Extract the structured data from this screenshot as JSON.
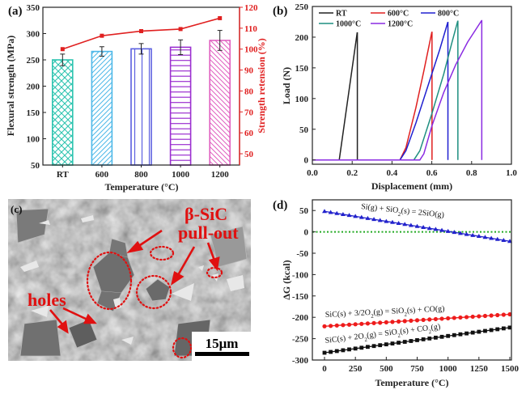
{
  "chart_data": [
    {
      "panel": "(a)",
      "type": "bar",
      "xlabel": "Temperature (°C)",
      "ylabel": "Flexural strength (MPa)",
      "y2label": "Strength retension (%)",
      "categories": [
        "RT",
        "600",
        "800",
        "1000",
        "1200"
      ],
      "ylim": [
        50,
        350
      ],
      "yticks": [
        50,
        100,
        150,
        200,
        250,
        300,
        350
      ],
      "y2lim": [
        44.6,
        120
      ],
      "y2ticks": [
        50,
        60,
        70,
        80,
        90,
        100,
        110,
        120
      ],
      "series": [
        {
          "name": "Flexural strength",
          "type": "bar",
          "values": [
            250,
            266,
            271,
            274,
            287
          ],
          "errors": [
            11,
            9,
            10,
            14,
            19
          ],
          "colors": [
            "#2ec4b0",
            "#4db8e8",
            "#5b5fe0",
            "#9b2fd0",
            "#e060c0"
          ],
          "patterns": [
            "crosshatch",
            "diagonal",
            "vertical",
            "horizontal",
            "backdiagonal"
          ]
        },
        {
          "name": "Strength retension",
          "type": "line",
          "axis": "right",
          "values": [
            100,
            106.4,
            108.6,
            109.6,
            114.8
          ],
          "color": "#e02020"
        }
      ]
    },
    {
      "panel": "(b)",
      "type": "line",
      "xlabel": "Displacement (mm)",
      "ylabel": "Load (N)",
      "xlim": [
        0.0,
        1.0
      ],
      "ylim": [
        -7,
        250
      ],
      "xticks": [
        "0.0",
        "0.2",
        "0.4",
        "0.6",
        "0.8",
        "1.0"
      ],
      "yticks": [
        0,
        50,
        100,
        150,
        200,
        250
      ],
      "legend_position": "top",
      "series": [
        {
          "name": "RT",
          "color": "#222222",
          "x": [
            0.0,
            0.135,
            0.225,
            0.226,
            0.226
          ],
          "y": [
            0,
            0,
            207,
            207,
            0
          ]
        },
        {
          "name": "600°C",
          "color": "#e02020",
          "x": [
            0.0,
            0.44,
            0.47,
            0.52,
            0.56,
            0.6,
            0.601,
            0.601
          ],
          "y": [
            0,
            0,
            20,
            85,
            145,
            208,
            208,
            0
          ]
        },
        {
          "name": "800°C",
          "color": "#2020d0",
          "x": [
            0.0,
            0.44,
            0.47,
            0.52,
            0.58,
            0.64,
            0.68,
            0.681,
            0.681
          ],
          "y": [
            0,
            0,
            15,
            60,
            120,
            180,
            224,
            224,
            0
          ]
        },
        {
          "name": "1000°C",
          "color": "#1f8f80",
          "x": [
            0.0,
            0.51,
            0.54,
            0.6,
            0.66,
            0.7,
            0.73,
            0.731,
            0.731
          ],
          "y": [
            0,
            0,
            15,
            75,
            140,
            190,
            226,
            226,
            0
          ]
        },
        {
          "name": "1200°C",
          "color": "#8a2be2",
          "x": [
            0.0,
            0.54,
            0.56,
            0.6,
            0.66,
            0.72,
            0.78,
            0.85,
            0.851,
            0.851
          ],
          "y": [
            0,
            0,
            10,
            55,
            110,
            155,
            192,
            227,
            227,
            0
          ]
        }
      ]
    },
    {
      "panel": "(d)",
      "type": "scatter",
      "xlabel": "Temperature (°C)",
      "ylabel": "ΔG (kcal)",
      "xlim": [
        -60,
        1500
      ],
      "ylim": [
        -300,
        75
      ],
      "xticks": [
        0,
        250,
        500,
        750,
        1000,
        1250,
        1500
      ],
      "yticks": [
        50,
        0,
        -50,
        -100,
        -150,
        -200,
        -250,
        -300
      ],
      "reference_line": {
        "y": 0,
        "color": "#22aa22",
        "style": "dotted"
      },
      "series": [
        {
          "name": "Si(g) + SiO2(s) = 2SiO(g)",
          "marker": "triangle",
          "color": "#2222cc",
          "x_start": 0,
          "x_end": 1500,
          "x_step": 50,
          "y_start": 48,
          "y_end": -22
        },
        {
          "name": "SiC(s) + 3/2O2(g) = SiO2(s) + CO(g)",
          "marker": "circle",
          "color": "#ee1c1c",
          "x_start": 0,
          "x_end": 1500,
          "x_step": 50,
          "y_start": -221,
          "y_end": -193
        },
        {
          "name": "SiC(s) + 2O2(g) = SiO2(s) + CO2(g)",
          "marker": "square",
          "color": "#111111",
          "x_start": 0,
          "x_end": 1500,
          "x_step": 50,
          "y_start": -283,
          "y_end": -224
        }
      ]
    }
  ],
  "micrograph": {
    "panel": "(c)",
    "labels": {
      "beta_sic": "β-SiC",
      "pull_out": "pull-out",
      "holes": "holes"
    },
    "scale_bar": "15μm"
  },
  "equations": {
    "eq1_main": "Si(g) + SiO",
    "eq1_sub": "2",
    "eq1_tail": "(s) = 2SiO(g)",
    "eq2_main": "SiC(s) + 3/2O",
    "eq2_sub": "2",
    "eq2_mid": "(g) = SiO",
    "eq2_sub2": "2",
    "eq2_tail": "(s) + CO(g)",
    "eq3_main": "SiC(s) + 2O",
    "eq3_sub": "2",
    "eq3_mid": "(g) = SiO",
    "eq3_sub2": "2",
    "eq3_tail": "(s) + CO",
    "eq3_sub3": "2",
    "eq3_end": "(g)"
  }
}
